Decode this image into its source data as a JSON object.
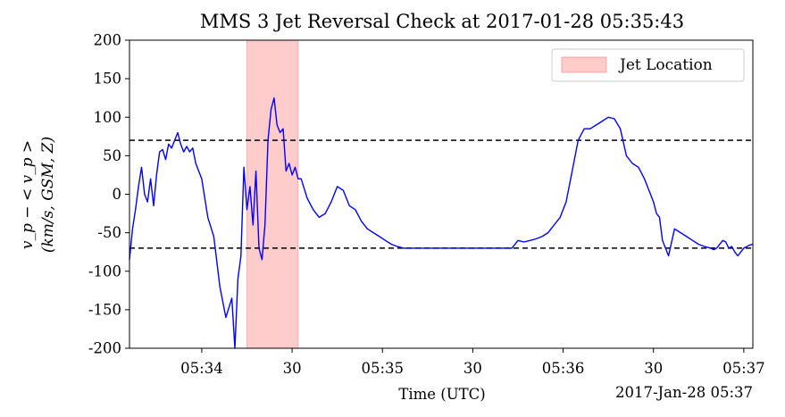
{
  "chart_data": {
    "type": "line",
    "title": "MMS 3 Jet Reversal Check at 2017-01-28 05:35:43",
    "xlabel": "Time (UTC)",
    "x_offset_label": "2017-Jan-28 05:37",
    "ylabel_line1": "v_p − < v_p >",
    "ylabel_line2": "(km/s, GSM, Z)",
    "ylim": [
      -200,
      200
    ],
    "xlim": [
      "05:33:36",
      "05:37:03"
    ],
    "yticks": [
      -200,
      -150,
      -100,
      -50,
      0,
      50,
      100,
      150,
      200
    ],
    "xticks": [
      {
        "t": "05:34:00",
        "label": "05:34"
      },
      {
        "t": "05:34:30",
        "label": "30"
      },
      {
        "t": "05:35:00",
        "label": "05:35"
      },
      {
        "t": "05:35:30",
        "label": "30"
      },
      {
        "t": "05:36:00",
        "label": "05:36"
      },
      {
        "t": "05:36:30",
        "label": "30"
      },
      {
        "t": "05:37:00",
        "label": "05:37"
      }
    ],
    "thresholds": [
      70,
      -70
    ],
    "jet_location": {
      "start": "05:34:15",
      "end": "05:34:32",
      "label": "Jet Location",
      "color": "#ffcccc"
    },
    "legend_position": "upper right",
    "grid": false,
    "series": [
      {
        "color": "#0000ff",
        "x": [
          "05:33:36",
          "05:33:37",
          "05:33:38",
          "05:33:39",
          "05:33:40",
          "05:33:41",
          "05:33:42",
          "05:33:43",
          "05:33:44",
          "05:33:45",
          "05:33:46",
          "05:33:47",
          "05:33:48",
          "05:33:49",
          "05:33:50",
          "05:33:51",
          "05:33:52",
          "05:33:53",
          "05:33:54",
          "05:33:55",
          "05:33:56",
          "05:33:57",
          "05:33:58",
          "05:34:00",
          "05:34:02",
          "05:34:04",
          "05:34:06",
          "05:34:08",
          "05:34:10",
          "05:34:11",
          "05:34:12",
          "05:34:13",
          "05:34:14",
          "05:34:15",
          "05:34:16",
          "05:34:17",
          "05:34:18",
          "05:34:19",
          "05:34:20",
          "05:34:21",
          "05:34:22",
          "05:34:23",
          "05:34:24",
          "05:34:25",
          "05:34:26",
          "05:34:27",
          "05:34:28",
          "05:34:29",
          "05:34:30",
          "05:34:31",
          "05:34:32",
          "05:34:33",
          "05:34:35",
          "05:34:37",
          "05:34:39",
          "05:34:41",
          "05:34:43",
          "05:34:45",
          "05:34:47",
          "05:34:49",
          "05:34:51",
          "05:34:53",
          "05:34:55",
          "05:34:57",
          "05:34:59",
          "05:35:01",
          "05:35:03",
          "05:35:05",
          "05:35:07",
          "05:35:43",
          "05:35:45",
          "05:35:47",
          "05:35:49",
          "05:35:51",
          "05:35:53",
          "05:35:55",
          "05:35:57",
          "05:35:59",
          "05:36:01",
          "05:36:03",
          "05:36:05",
          "05:36:07",
          "05:36:09",
          "05:36:11",
          "05:36:13",
          "05:36:15",
          "05:36:17",
          "05:36:19",
          "05:36:21",
          "05:36:23",
          "05:36:25",
          "05:36:27",
          "05:36:29",
          "05:36:30",
          "05:36:31",
          "05:36:32",
          "05:36:33",
          "05:36:35",
          "05:36:37",
          "05:36:39",
          "05:36:41",
          "05:36:43",
          "05:36:45",
          "05:36:47",
          "05:36:49",
          "05:36:50",
          "05:36:51",
          "05:36:52",
          "05:36:53",
          "05:36:54",
          "05:36:55",
          "05:36:56",
          "05:36:57",
          "05:36:58",
          "05:36:59",
          "05:37:00",
          "05:37:01",
          "05:37:02",
          "05:37:03"
        ],
        "y": [
          -85,
          -45,
          -20,
          10,
          35,
          0,
          -10,
          20,
          -15,
          25,
          55,
          58,
          45,
          65,
          60,
          70,
          80,
          65,
          55,
          62,
          55,
          60,
          40,
          20,
          -30,
          -55,
          -120,
          -160,
          -135,
          -200,
          -110,
          -80,
          35,
          -20,
          10,
          -40,
          30,
          -70,
          -85,
          -40,
          70,
          110,
          125,
          90,
          80,
          85,
          30,
          40,
          25,
          35,
          20,
          20,
          -5,
          -20,
          -30,
          -25,
          -10,
          10,
          5,
          -15,
          -20,
          -35,
          -45,
          -50,
          -55,
          -60,
          -65,
          -68,
          -70,
          -70,
          -60,
          -62,
          -60,
          -58,
          -55,
          -50,
          -40,
          -30,
          -10,
          30,
          70,
          85,
          85,
          90,
          95,
          100,
          98,
          85,
          50,
          40,
          35,
          20,
          0,
          -10,
          -25,
          -30,
          -60,
          -80,
          -45,
          -50,
          -55,
          -60,
          -65,
          -68,
          -70,
          -72,
          -70,
          -65,
          -60,
          -62,
          -70,
          -68,
          -75,
          -80,
          -75,
          -70,
          -68,
          -66,
          -65
        ]
      }
    ]
  }
}
